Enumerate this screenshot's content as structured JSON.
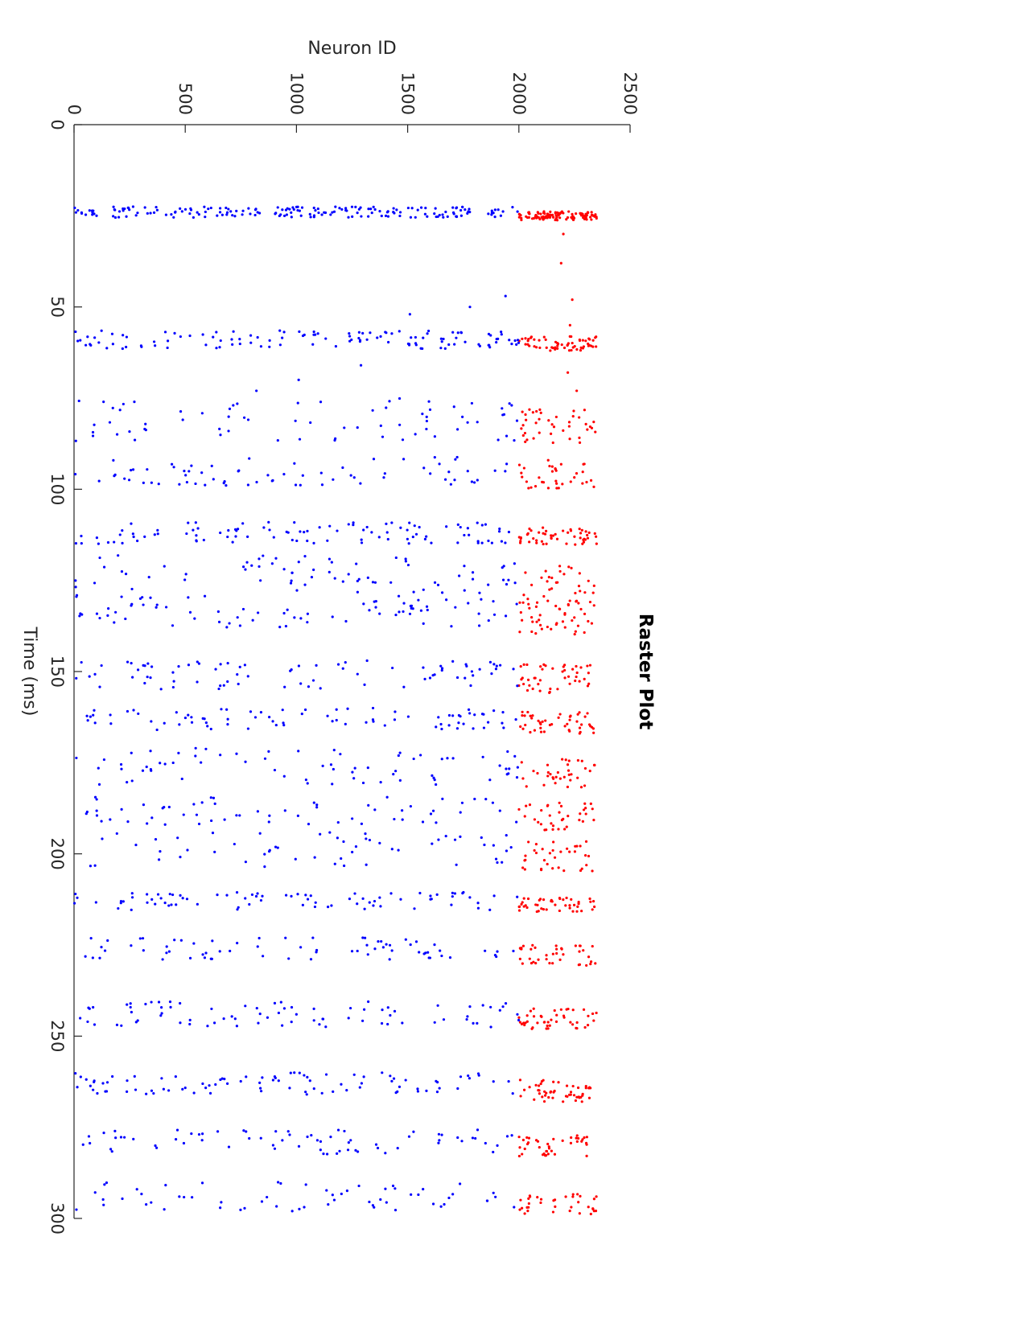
{
  "chart_data": {
    "type": "scatter",
    "title": "Raster Plot",
    "xlabel": "Time (ms)",
    "ylabel": "Neuron ID",
    "xlim": [
      0,
      300
    ],
    "ylim": [
      0,
      2500
    ],
    "xticks": [
      0,
      50,
      100,
      150,
      200,
      250,
      300
    ],
    "yticks": [
      0,
      500,
      1000,
      1500,
      2000,
      2500
    ],
    "orientation": "rotated-90-clockwise",
    "grid": false,
    "legend": "none",
    "series": [
      {
        "color": "#ff0000",
        "neuron_range": [
          2000,
          2350
        ],
        "bursts": [
          {
            "t": 25,
            "width": 1.2,
            "count": 110
          },
          {
            "t": 60,
            "width": 2.0,
            "count": 60
          },
          {
            "t": 83,
            "width": 5.0,
            "count": 40
          },
          {
            "t": 96,
            "width": 4.0,
            "count": 35
          },
          {
            "t": 113,
            "width": 2.5,
            "count": 50
          },
          {
            "t": 126,
            "width": 6.0,
            "count": 40
          },
          {
            "t": 136,
            "width": 4.0,
            "count": 35
          },
          {
            "t": 152,
            "width": 4.0,
            "count": 45
          },
          {
            "t": 164,
            "width": 3.0,
            "count": 45
          },
          {
            "t": 178,
            "width": 4.0,
            "count": 35
          },
          {
            "t": 190,
            "width": 4.0,
            "count": 35
          },
          {
            "t": 200,
            "width": 5.0,
            "count": 35
          },
          {
            "t": 214,
            "width": 2.0,
            "count": 45
          },
          {
            "t": 228,
            "width": 3.0,
            "count": 40
          },
          {
            "t": 245,
            "width": 3.0,
            "count": 45
          },
          {
            "t": 265,
            "width": 3.0,
            "count": 50
          },
          {
            "t": 280,
            "width": 3.0,
            "count": 40
          },
          {
            "t": 296,
            "width": 3.0,
            "count": 35
          }
        ],
        "sparse_points": [
          [
            30,
            2200
          ],
          [
            38,
            2190
          ],
          [
            48,
            2240
          ],
          [
            55,
            2230
          ],
          [
            68,
            2220
          ],
          [
            73,
            2260
          ]
        ]
      },
      {
        "color": "#0000ff",
        "neuron_range": [
          0,
          2000
        ],
        "bursts": [
          {
            "t": 24,
            "width": 1.5,
            "count": 190
          },
          {
            "t": 59,
            "width": 2.5,
            "count": 120
          },
          {
            "t": 81,
            "width": 6.0,
            "count": 70
          },
          {
            "t": 95,
            "width": 4.0,
            "count": 70
          },
          {
            "t": 112,
            "width": 3.0,
            "count": 100
          },
          {
            "t": 124,
            "width": 6.0,
            "count": 80
          },
          {
            "t": 134,
            "width": 4.0,
            "count": 70
          },
          {
            "t": 151,
            "width": 4.0,
            "count": 80
          },
          {
            "t": 163,
            "width": 3.0,
            "count": 80
          },
          {
            "t": 176,
            "width": 5.0,
            "count": 70
          },
          {
            "t": 188,
            "width": 4.0,
            "count": 60
          },
          {
            "t": 199,
            "width": 5.0,
            "count": 55
          },
          {
            "t": 213,
            "width": 2.5,
            "count": 80
          },
          {
            "t": 226,
            "width": 3.0,
            "count": 70
          },
          {
            "t": 244,
            "width": 3.5,
            "count": 80
          },
          {
            "t": 263,
            "width": 3.0,
            "count": 90
          },
          {
            "t": 279,
            "width": 3.5,
            "count": 70
          },
          {
            "t": 294,
            "width": 4.0,
            "count": 60
          }
        ],
        "sparse_points": [
          [
            47,
            1940
          ],
          [
            50,
            1780
          ],
          [
            52,
            1510
          ],
          [
            66,
            1290
          ],
          [
            70,
            1010
          ],
          [
            73,
            820
          ]
        ]
      }
    ]
  }
}
